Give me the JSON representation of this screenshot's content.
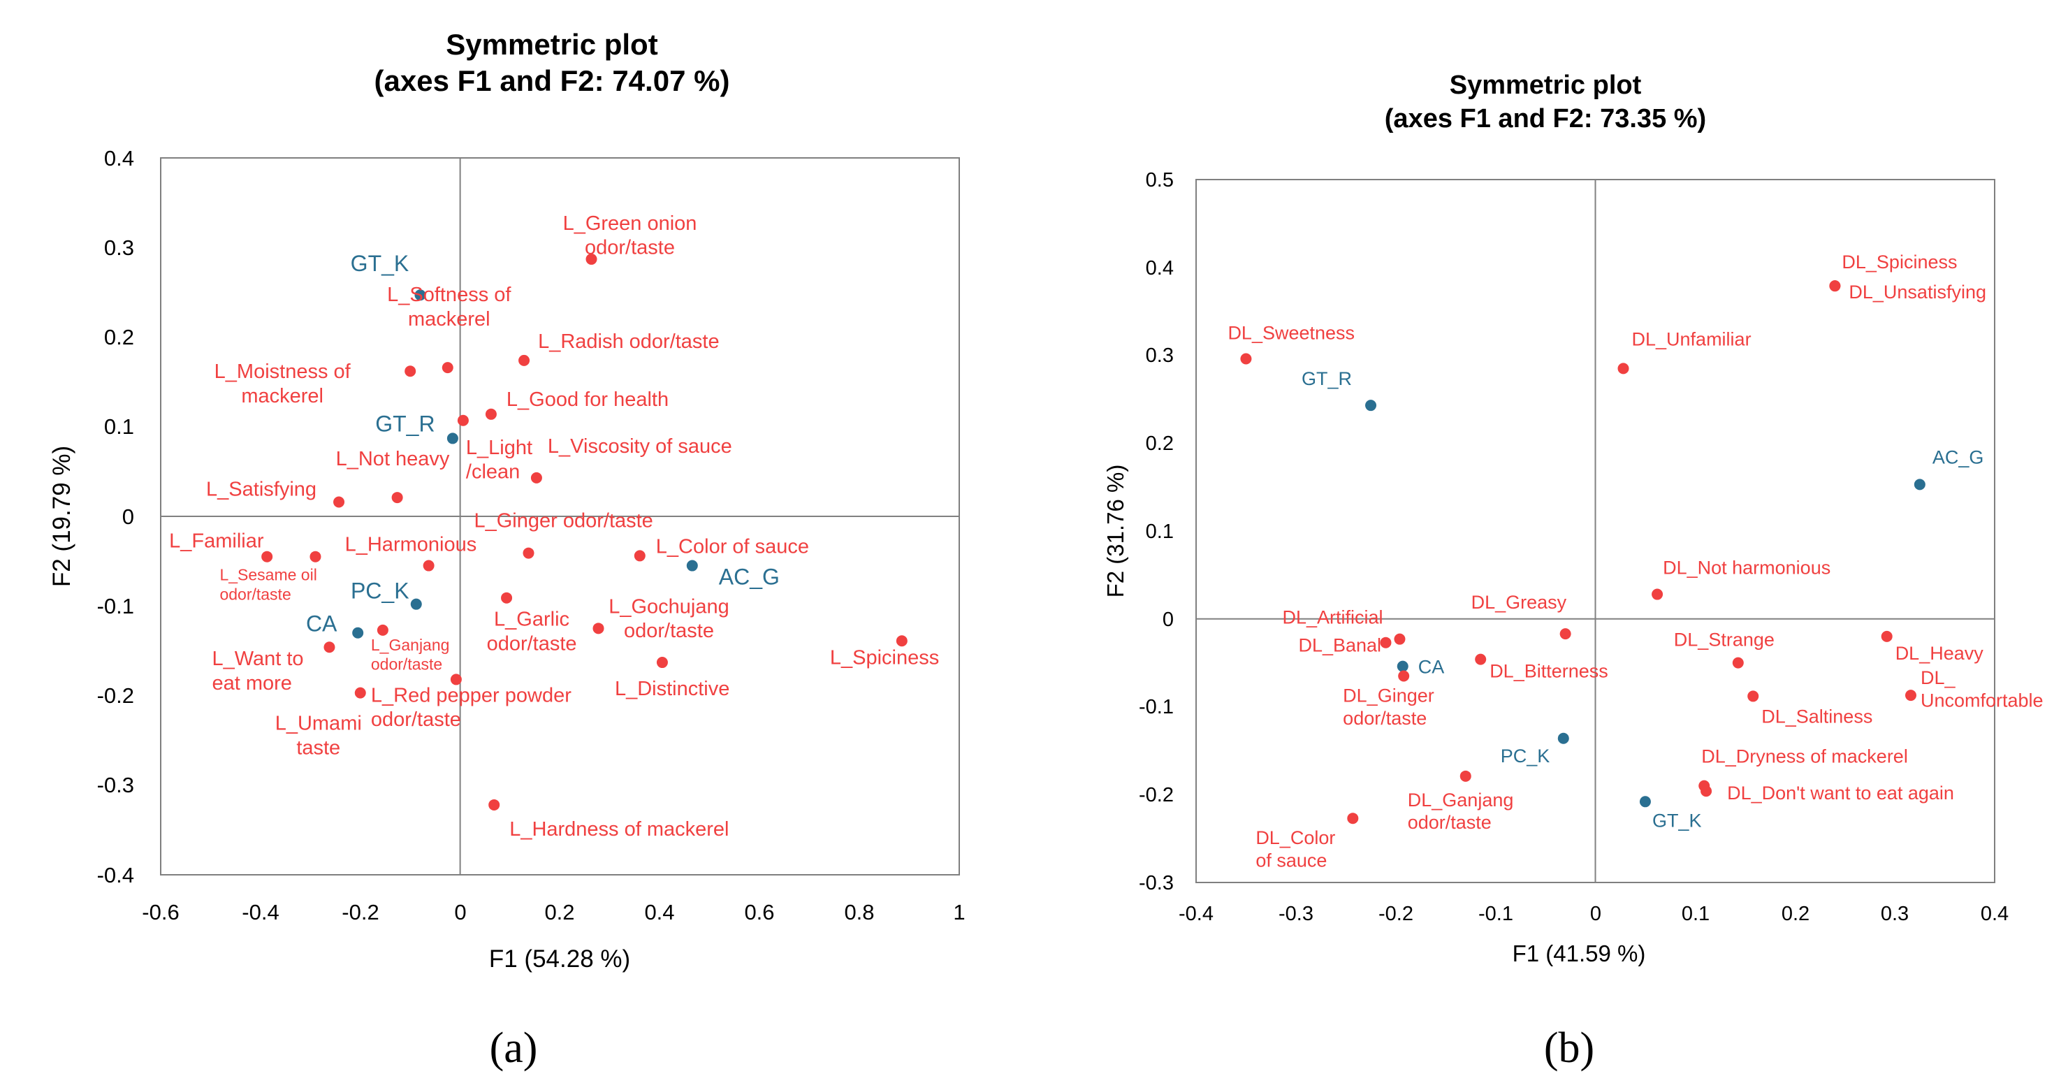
{
  "colors": {
    "attribute": "#f04040",
    "sample": "#2a6f91",
    "frame": "#7f7f7f",
    "axis": "#808080"
  },
  "chart_data": [
    {
      "type": "scatter",
      "panel_label": "(a)",
      "title": "Symmetric plot",
      "subtitle": "(axes F1 and F2: 74.07 %)",
      "xlabel": "F1 (54.28 %)",
      "ylabel": "F2 (19.79 %)",
      "xlim": [
        -0.6,
        1
      ],
      "ylim": [
        -0.4,
        0.4
      ],
      "xticks": [
        "-0.6",
        "-0.4",
        "-0.2",
        "0",
        "0.2",
        "0.4",
        "0.6",
        "0.8",
        "1"
      ],
      "yticks": [
        "0.4",
        "0.3",
        "0.2",
        "0.1",
        "0",
        "-0.1",
        "-0.2",
        "-0.3",
        "-0.4"
      ],
      "series": [
        {
          "name": "samples",
          "color_key": "sample",
          "points": [
            {
              "label": "GT_K",
              "x": -0.08,
              "y": 0.247
            },
            {
              "label": "GT_R",
              "x": -0.015,
              "y": 0.087
            },
            {
              "label": "PC_K",
              "x": -0.088,
              "y": -0.098
            },
            {
              "label": "CA",
              "x": -0.205,
              "y": -0.13
            },
            {
              "label": "AC_G",
              "x": 0.465,
              "y": -0.055
            }
          ]
        },
        {
          "name": "attributes",
          "color_key": "attribute",
          "points": [
            {
              "label": "L_Green onion odor/taste",
              "x": 0.263,
              "y": 0.287
            },
            {
              "label": "L_Softness of mackerel",
              "x": -0.025,
              "y": 0.166
            },
            {
              "label": "L_Moistness of mackerel",
              "x": -0.1,
              "y": 0.162
            },
            {
              "label": "L_Radish odor/taste",
              "x": 0.128,
              "y": 0.174
            },
            {
              "label": "L_Good for health",
              "x": 0.062,
              "y": 0.114
            },
            {
              "label": "L_Light /clean",
              "x": 0.006,
              "y": 0.107
            },
            {
              "label": "L_Viscosity of sauce",
              "x": 0.153,
              "y": 0.043
            },
            {
              "label": "L_Satisfying",
              "x": -0.243,
              "y": 0.016
            },
            {
              "label": "L_Not heavy",
              "x": -0.126,
              "y": 0.021
            },
            {
              "label": "L_Familiar",
              "x": -0.387,
              "y": -0.045
            },
            {
              "label": "L_Sesame oil odor/taste",
              "x": -0.29,
              "y": -0.045
            },
            {
              "label": "L_Harmonious",
              "x": -0.063,
              "y": -0.055
            },
            {
              "label": "L_Ginger odor/taste",
              "x": 0.137,
              "y": -0.041
            },
            {
              "label": "L_Color of sauce",
              "x": 0.36,
              "y": -0.044
            },
            {
              "label": "L_Ganjang odor/taste",
              "x": -0.155,
              "y": -0.127
            },
            {
              "label": "L_Want to eat more",
              "x": -0.262,
              "y": -0.146
            },
            {
              "label": "L_Umami taste",
              "x": -0.2,
              "y": -0.197
            },
            {
              "label": "L_Red pepper powder odor/taste",
              "x": -0.008,
              "y": -0.182
            },
            {
              "label": "L_Garlic odor/taste",
              "x": 0.093,
              "y": -0.091
            },
            {
              "label": "L_Gochujang odor/taste",
              "x": 0.277,
              "y": -0.125
            },
            {
              "label": "L_Distinctive",
              "x": 0.405,
              "y": -0.163
            },
            {
              "label": "L_Spiciness",
              "x": 0.885,
              "y": -0.139
            },
            {
              "label": "L_Hardness of mackerel",
              "x": 0.068,
              "y": -0.322
            }
          ]
        }
      ]
    },
    {
      "type": "scatter",
      "panel_label": "(b)",
      "title": "Symmetric plot",
      "subtitle": "(axes F1 and F2: 73.35 %)",
      "xlabel": "F1 (41.59 %)",
      "ylabel": "F2 (31.76 %)",
      "xlim": [
        -0.4,
        0.4
      ],
      "ylim": [
        -0.3,
        0.5
      ],
      "xticks": [
        "-0.4",
        "-0.3",
        "-0.2",
        "-0.1",
        "0",
        "0.1",
        "0.2",
        "0.3",
        "0.4"
      ],
      "yticks": [
        "0.5",
        "0.4",
        "0.3",
        "0.2",
        "0.1",
        "0",
        "-0.1",
        "-0.2",
        "-0.3"
      ],
      "series": [
        {
          "name": "samples",
          "color_key": "sample",
          "points": [
            {
              "label": "GT_R",
              "x": -0.225,
              "y": 0.243
            },
            {
              "label": "AC_G",
              "x": 0.325,
              "y": 0.153
            },
            {
              "label": "CA",
              "x": -0.193,
              "y": -0.054
            },
            {
              "label": "PC_K",
              "x": -0.032,
              "y": -0.136
            },
            {
              "label": "GT_K",
              "x": 0.05,
              "y": -0.208
            }
          ]
        },
        {
          "name": "attributes",
          "color_key": "attribute",
          "points": [
            {
              "label": "DL_Sweetness",
              "x": -0.35,
              "y": 0.296
            },
            {
              "label": "DL_Spiciness",
              "x": 0.24,
              "y": 0.379
            },
            {
              "label": "DL_Unsatisfying",
              "x": 0.24,
              "y": 0.379
            },
            {
              "label": "DL_Unfamiliar",
              "x": 0.028,
              "y": 0.285
            },
            {
              "label": "DL_Not harmonious",
              "x": 0.062,
              "y": 0.028
            },
            {
              "label": "DL_Artificial",
              "x": -0.21,
              "y": -0.027
            },
            {
              "label": "DL_Banal",
              "x": -0.196,
              "y": -0.023
            },
            {
              "label": "DL_Greasy",
              "x": -0.03,
              "y": -0.017
            },
            {
              "label": "DL_Ginger odor/taste",
              "x": -0.192,
              "y": -0.065
            },
            {
              "label": "DL_Bitterness",
              "x": -0.115,
              "y": -0.046
            },
            {
              "label": "DL_Strange",
              "x": 0.143,
              "y": -0.05
            },
            {
              "label": "DL_Heavy",
              "x": 0.292,
              "y": -0.02
            },
            {
              "label": "DL_Saltiness",
              "x": 0.158,
              "y": -0.088
            },
            {
              "label": "DL_ Uncomfortable",
              "x": 0.316,
              "y": -0.087
            },
            {
              "label": "DL_Ganjang odor/taste",
              "x": -0.13,
              "y": -0.179
            },
            {
              "label": "DL_Dryness of mackerel",
              "x": 0.109,
              "y": -0.19
            },
            {
              "label": "DL_Don't want to eat again",
              "x": 0.111,
              "y": -0.196
            },
            {
              "label": "DL_Color of sauce",
              "x": -0.243,
              "y": -0.227
            }
          ]
        }
      ]
    }
  ]
}
